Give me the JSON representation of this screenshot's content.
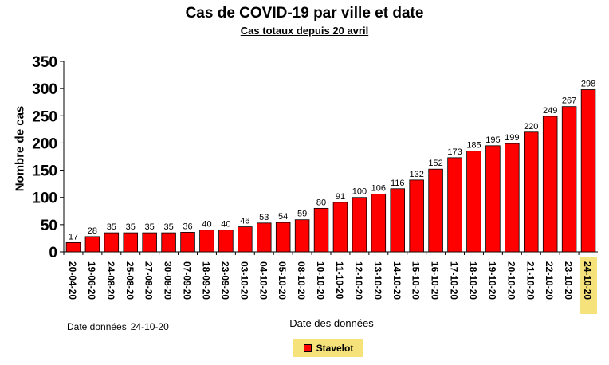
{
  "chart_data": {
    "type": "bar",
    "title": "Cas de COVID-19 par ville et date",
    "subtitle": "Cas totaux depuis 20 avril",
    "xlabel": "Date des données",
    "ylabel": "Nombre de cas",
    "ylim": [
      0,
      350
    ],
    "yticks": [
      0,
      50,
      100,
      150,
      200,
      250,
      300,
      350
    ],
    "categories": [
      "20-04-20",
      "19-06-20",
      "24-08-20",
      "25-08-20",
      "27-08-20",
      "30-08-20",
      "07-09-20",
      "18-09-20",
      "23-09-20",
      "03-10-20",
      "04-10-20",
      "05-10-20",
      "08-10-20",
      "10-10-20",
      "11-10-20",
      "12-10-20",
      "13-10-20",
      "14-10-20",
      "15-10-20",
      "16-10-20",
      "17-10-20",
      "18-10-20",
      "19-10-20",
      "20-10-20",
      "21-10-20",
      "22-10-20",
      "23-10-20",
      "24-10-20"
    ],
    "series": [
      {
        "name": "Stavelot",
        "values": [
          17,
          28,
          35,
          35,
          35,
          35,
          36,
          40,
          40,
          46,
          53,
          54,
          59,
          80,
          91,
          100,
          106,
          116,
          132,
          152,
          173,
          185,
          195,
          199,
          220,
          249,
          267,
          298
        ]
      }
    ],
    "highlight_category": "24-10-20",
    "highlight_color": "#f5e27a",
    "bar_color": "#ff0000",
    "legend_position": "bottom-center",
    "grid": false
  },
  "note": {
    "label": "Date données",
    "value": "24-10-20"
  }
}
